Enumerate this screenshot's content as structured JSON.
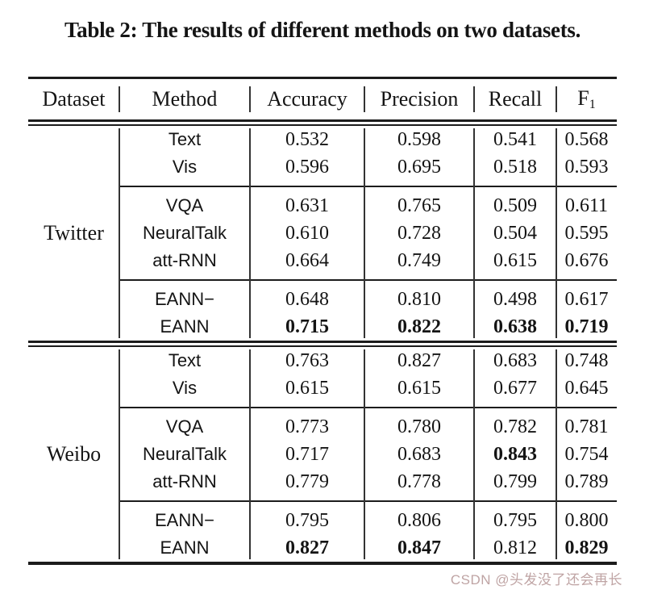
{
  "caption": "Table 2: The results of different methods on two datasets.",
  "table": {
    "headers": {
      "dataset": "Dataset",
      "method": "Method",
      "accuracy": "Accuracy",
      "precision": "Precision",
      "recall": "Recall",
      "f1_base": "F",
      "f1_sub": "1"
    },
    "sections": [
      {
        "dataset": "Twitter",
        "groups": [
          {
            "rows": [
              {
                "method": "Text",
                "values": [
                  "0.532",
                  "0.598",
                  "0.541",
                  "0.568"
                ]
              },
              {
                "method": "Vis",
                "values": [
                  "0.596",
                  "0.695",
                  "0.518",
                  "0.593"
                ]
              }
            ]
          },
          {
            "rows": [
              {
                "method": "VQA",
                "values": [
                  "0.631",
                  "0.765",
                  "0.509",
                  "0.611"
                ]
              },
              {
                "method": "NeuralTalk",
                "values": [
                  "0.610",
                  "0.728",
                  "0.504",
                  "0.595"
                ]
              },
              {
                "method": "att-RNN",
                "values": [
                  "0.664",
                  "0.749",
                  "0.615",
                  "0.676"
                ]
              }
            ]
          },
          {
            "rows": [
              {
                "method": "EANN−",
                "values": [
                  "0.648",
                  "0.810",
                  "0.498",
                  "0.617"
                ]
              },
              {
                "method": "EANN",
                "values": [
                  "0.715",
                  "0.822",
                  "0.638",
                  "0.719"
                ]
              }
            ]
          }
        ]
      },
      {
        "dataset": "Weibo",
        "groups": [
          {
            "rows": [
              {
                "method": "Text",
                "values": [
                  "0.763",
                  "0.827",
                  "0.683",
                  "0.748"
                ]
              },
              {
                "method": "Vis",
                "values": [
                  "0.615",
                  "0.615",
                  "0.677",
                  "0.645"
                ]
              }
            ]
          },
          {
            "rows": [
              {
                "method": "VQA",
                "values": [
                  "0.773",
                  "0.780",
                  "0.782",
                  "0.781"
                ]
              },
              {
                "method": "NeuralTalk",
                "values": [
                  "0.717",
                  "0.683",
                  "0.843",
                  "0.754"
                ]
              },
              {
                "method": "att-RNN",
                "values": [
                  "0.779",
                  "0.778",
                  "0.799",
                  "0.789"
                ]
              }
            ]
          },
          {
            "rows": [
              {
                "method": "EANN−",
                "values": [
                  "0.795",
                  "0.806",
                  "0.795",
                  "0.800"
                ]
              },
              {
                "method": "EANN",
                "values": [
                  "0.827",
                  "0.847",
                  "0.812",
                  "0.829"
                ]
              }
            ]
          }
        ]
      }
    ]
  },
  "watermark": {
    "text": "CSDN @头发没了还会再长",
    "color": "#bfa4a4"
  }
}
